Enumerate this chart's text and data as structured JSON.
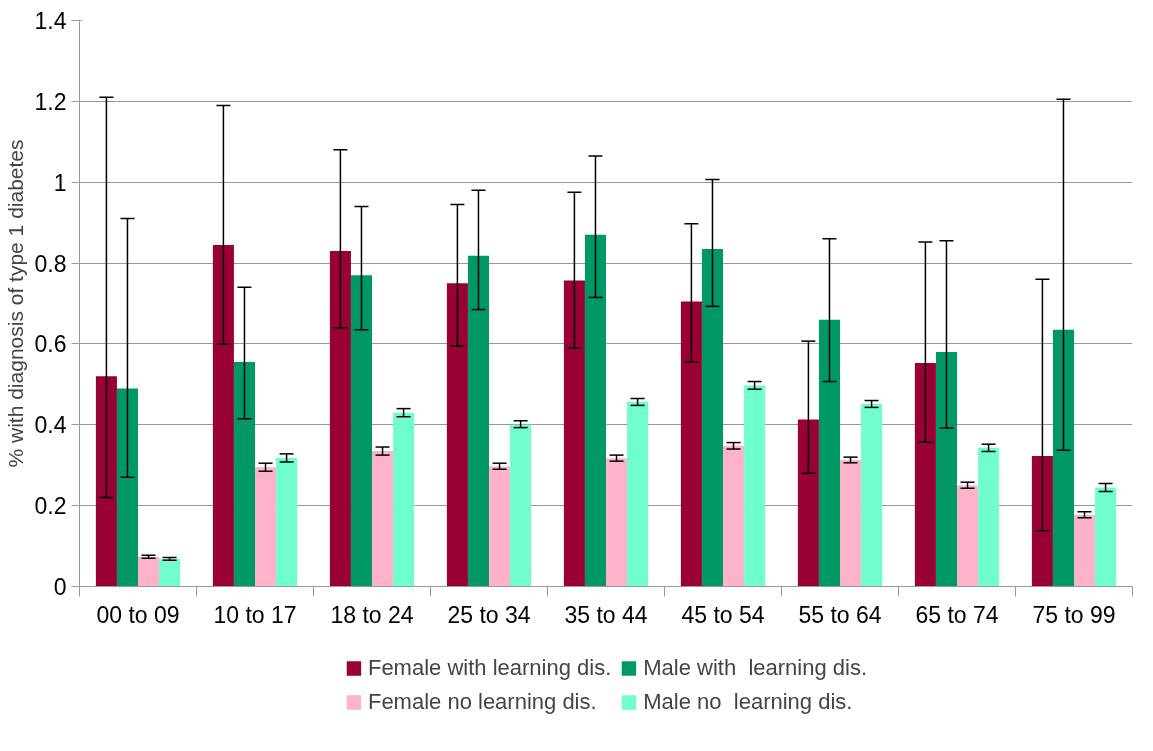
{
  "chart_data": {
    "type": "bar",
    "ylabel": "% with diagnosis of type 1 diabetes",
    "categories": [
      "00 to 09",
      "10 to 17",
      "18 to 24",
      "25 to 34",
      "35 to 44",
      "45 to 54",
      "55 to 64",
      "65 to 74",
      "75 to 99"
    ],
    "series": [
      {
        "name": "Female with learning dis.",
        "color": "#990033",
        "values": [
          0.52,
          0.845,
          0.83,
          0.75,
          0.757,
          0.705,
          0.413,
          0.553,
          0.323
        ],
        "errors": [
          [
            0.22,
            1.21
          ],
          [
            0.6,
            1.19
          ],
          [
            0.64,
            1.08
          ],
          [
            0.595,
            0.945
          ],
          [
            0.59,
            0.975
          ],
          [
            0.555,
            0.897
          ],
          [
            0.28,
            0.607
          ],
          [
            0.357,
            0.852
          ],
          [
            0.138,
            0.76
          ]
        ]
      },
      {
        "name": "Male with  learning dis.",
        "color": "#009966",
        "values": [
          0.49,
          0.555,
          0.77,
          0.818,
          0.87,
          0.835,
          0.66,
          0.58,
          0.635
        ],
        "errors": [
          [
            0.27,
            0.91
          ],
          [
            0.415,
            0.74
          ],
          [
            0.635,
            0.94
          ],
          [
            0.685,
            0.98
          ],
          [
            0.715,
            1.065
          ],
          [
            0.693,
            1.007
          ],
          [
            0.507,
            0.86
          ],
          [
            0.392,
            0.855
          ],
          [
            0.337,
            1.205
          ]
        ]
      },
      {
        "name": "Female no learning dis.",
        "color": "#ffb3c8",
        "values": [
          0.073,
          0.295,
          0.335,
          0.297,
          0.317,
          0.348,
          0.313,
          0.25,
          0.177
        ],
        "errors": [
          [
            0.07,
            0.077
          ],
          [
            0.285,
            0.305
          ],
          [
            0.325,
            0.345
          ],
          [
            0.29,
            0.305
          ],
          [
            0.31,
            0.325
          ],
          [
            0.34,
            0.356
          ],
          [
            0.306,
            0.32
          ],
          [
            0.243,
            0.258
          ],
          [
            0.17,
            0.185
          ]
        ]
      },
      {
        "name": "Male no  learning dis.",
        "color": "#70ffcc",
        "values": [
          0.068,
          0.318,
          0.43,
          0.4,
          0.457,
          0.497,
          0.452,
          0.343,
          0.245
        ],
        "errors": [
          [
            0.065,
            0.072
          ],
          [
            0.308,
            0.328
          ],
          [
            0.42,
            0.44
          ],
          [
            0.393,
            0.41
          ],
          [
            0.448,
            0.465
          ],
          [
            0.488,
            0.507
          ],
          [
            0.443,
            0.46
          ],
          [
            0.334,
            0.352
          ],
          [
            0.235,
            0.255
          ]
        ]
      }
    ],
    "ylim": [
      0,
      1.4
    ],
    "yticks": [
      0,
      0.2,
      0.4,
      0.6,
      0.8,
      1,
      1.2,
      1.4
    ],
    "grid": "y",
    "legend": "bottom"
  }
}
